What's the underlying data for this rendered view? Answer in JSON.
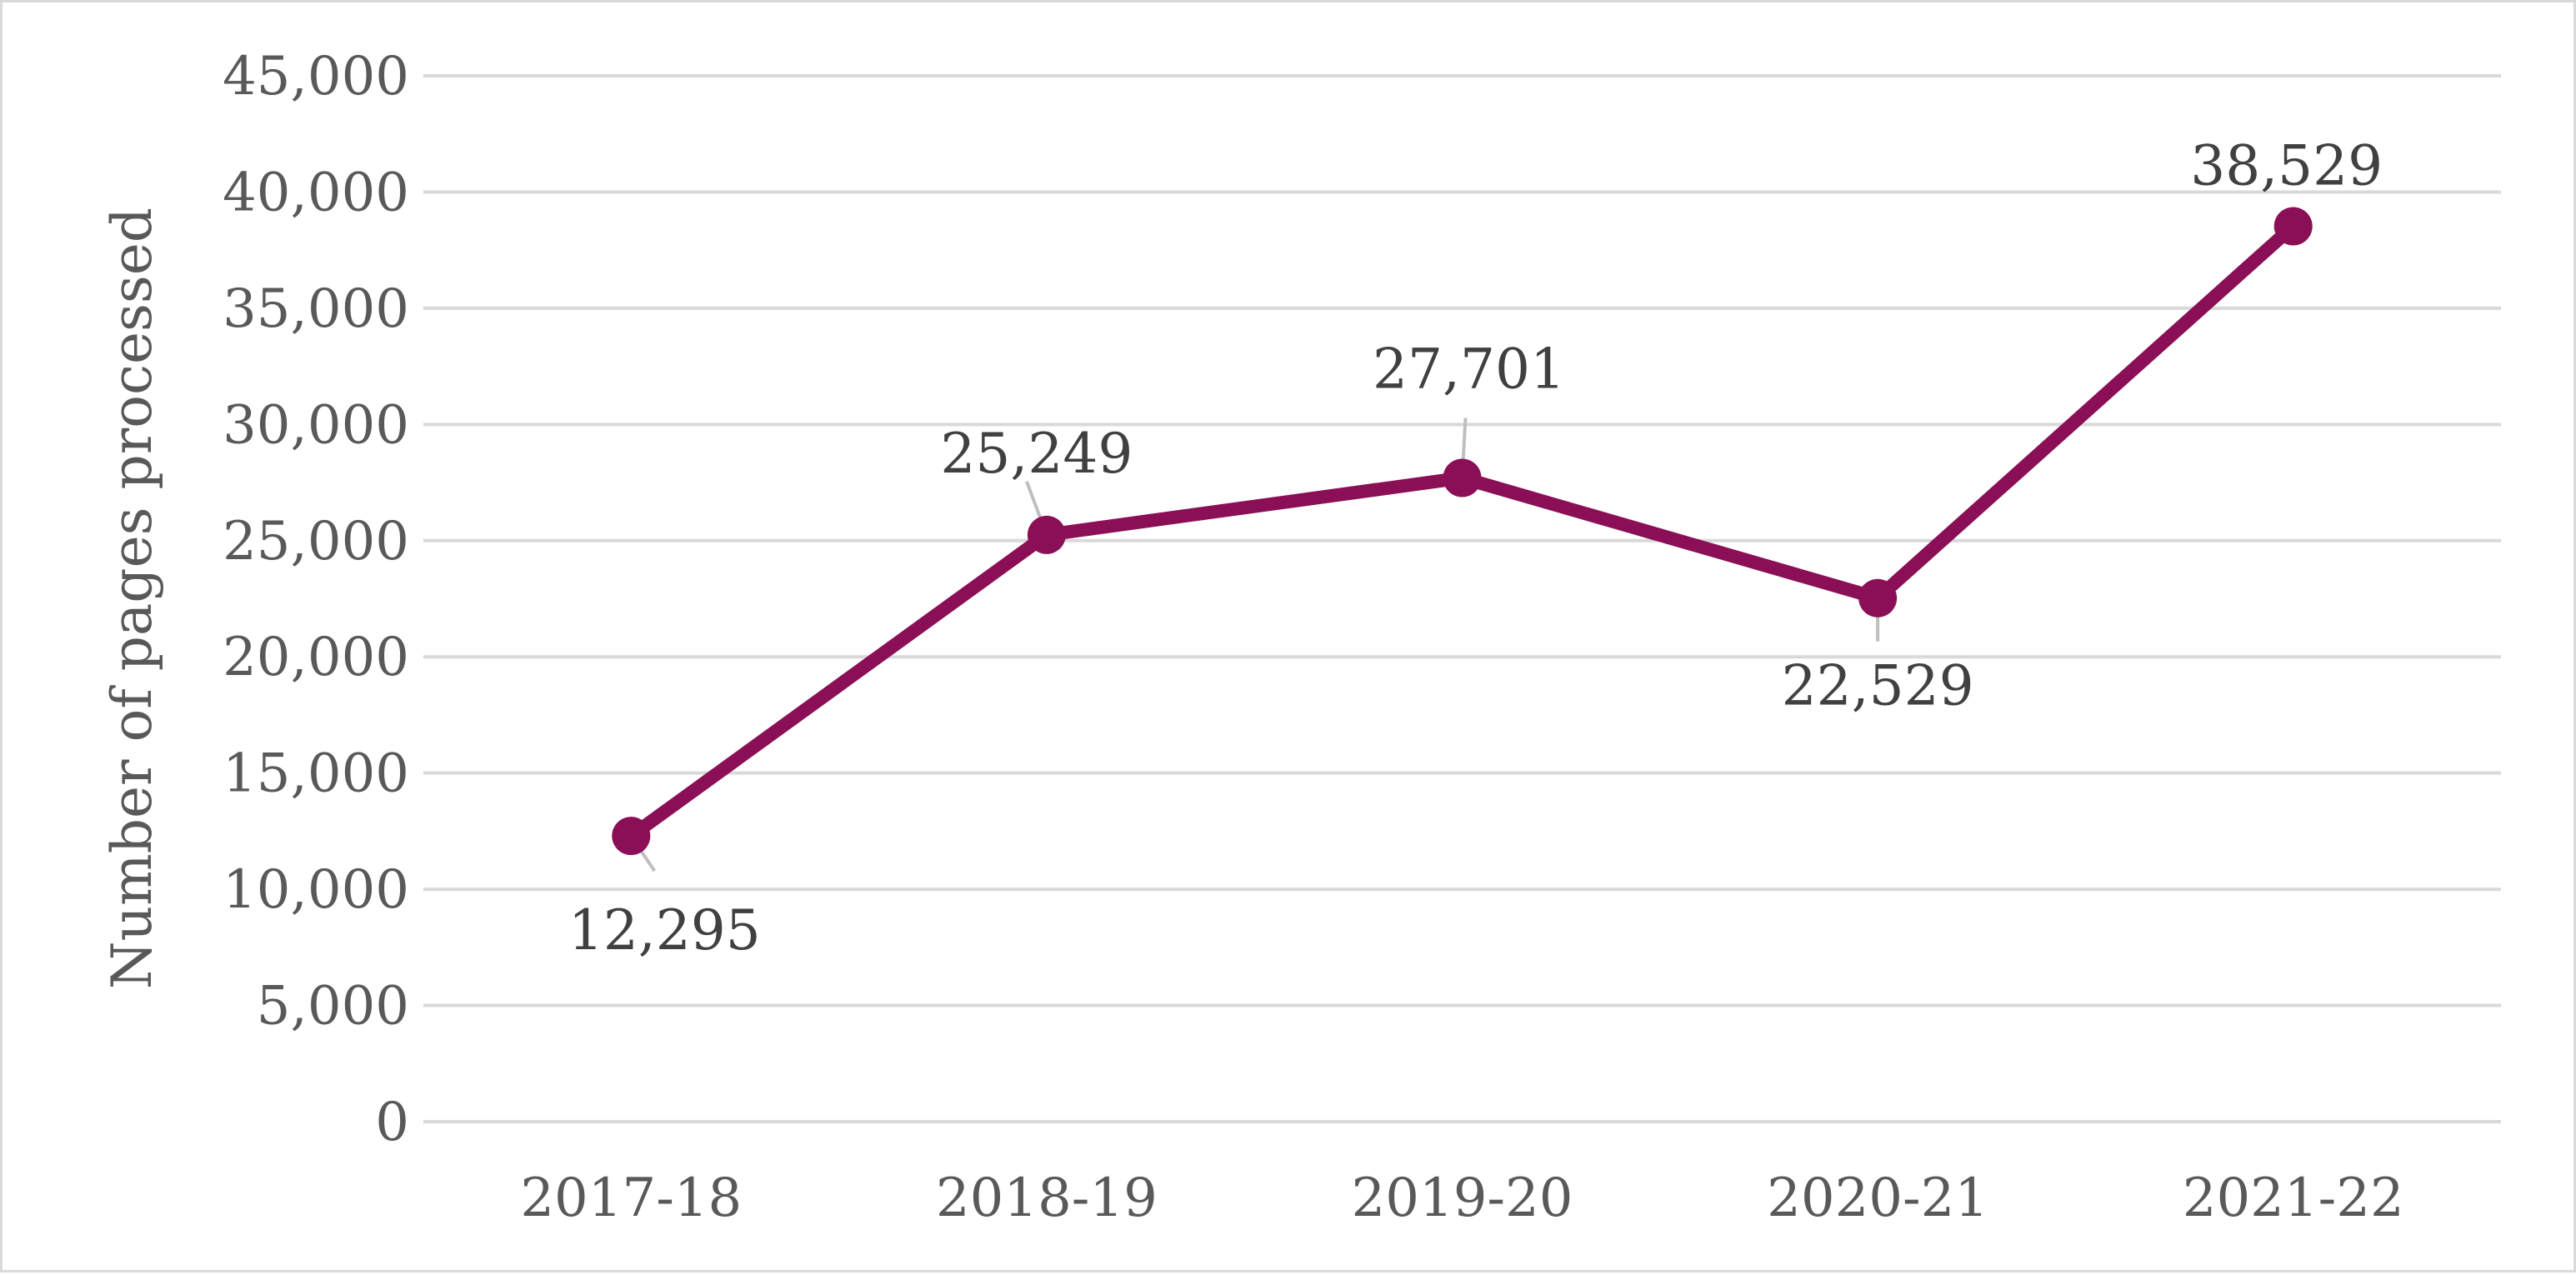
{
  "chart_data": {
    "type": "line",
    "title": "",
    "xlabel": "",
    "ylabel": "Number of pages processed",
    "categories": [
      "2017-18",
      "2018-19",
      "2019-20",
      "2020-21",
      "2021-22"
    ],
    "series": [
      {
        "values": [
          12295,
          25249,
          27701,
          22529,
          38529
        ],
        "color": "#8b0f57"
      }
    ],
    "data_labels": [
      "12,295",
      "25,249",
      "27,701",
      "22,529",
      "38,529"
    ],
    "data_label_positions": [
      "below",
      "above",
      "above",
      "below",
      "above"
    ],
    "ylim": [
      0,
      45000
    ],
    "yticks": [
      0,
      5000,
      10000,
      15000,
      20000,
      25000,
      30000,
      35000,
      40000,
      45000
    ],
    "ytick_labels": [
      "0",
      "5,000",
      "10,000",
      "15,000",
      "20,000",
      "25,000",
      "30,000",
      "35,000",
      "40,000",
      "45,000"
    ],
    "grid": true,
    "gridline_color": "#d9d9d9",
    "leader_line_color": "#bfbfbf"
  }
}
